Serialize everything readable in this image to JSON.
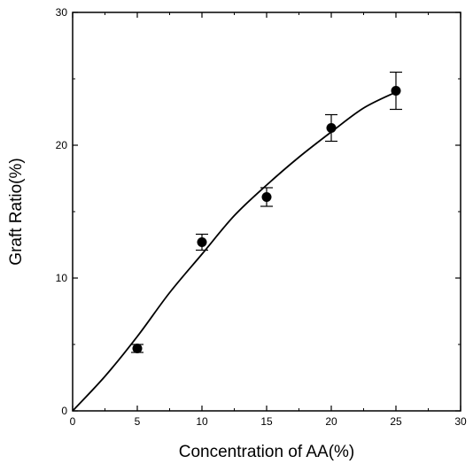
{
  "chart_data": {
    "type": "scatter",
    "xlabel": "Concentration of AA(%)",
    "ylabel": "Graft Ratio(%)",
    "xlim": [
      0,
      30
    ],
    "ylim": [
      0,
      30
    ],
    "xticks": [
      "0",
      "5",
      "10",
      "15",
      "20",
      "25",
      "30"
    ],
    "yticks": [
      "0",
      "10",
      "20",
      "30"
    ],
    "grid": false,
    "series": [
      {
        "marker": "filled-circle",
        "x": [
          5,
          10,
          15,
          20,
          25
        ],
        "y": [
          4.7,
          12.7,
          16.1,
          21.3,
          24.1
        ],
        "error": [
          0.3,
          0.6,
          0.7,
          1.0,
          1.4
        ]
      }
    ],
    "fit_curve": {
      "x": [
        0,
        2.5,
        5,
        7.5,
        10,
        12.5,
        15,
        17.5,
        20,
        22.5,
        25
      ],
      "y": [
        0,
        2.6,
        5.6,
        8.9,
        11.8,
        14.7,
        17.0,
        19.1,
        21.0,
        22.8,
        24.0
      ]
    }
  }
}
